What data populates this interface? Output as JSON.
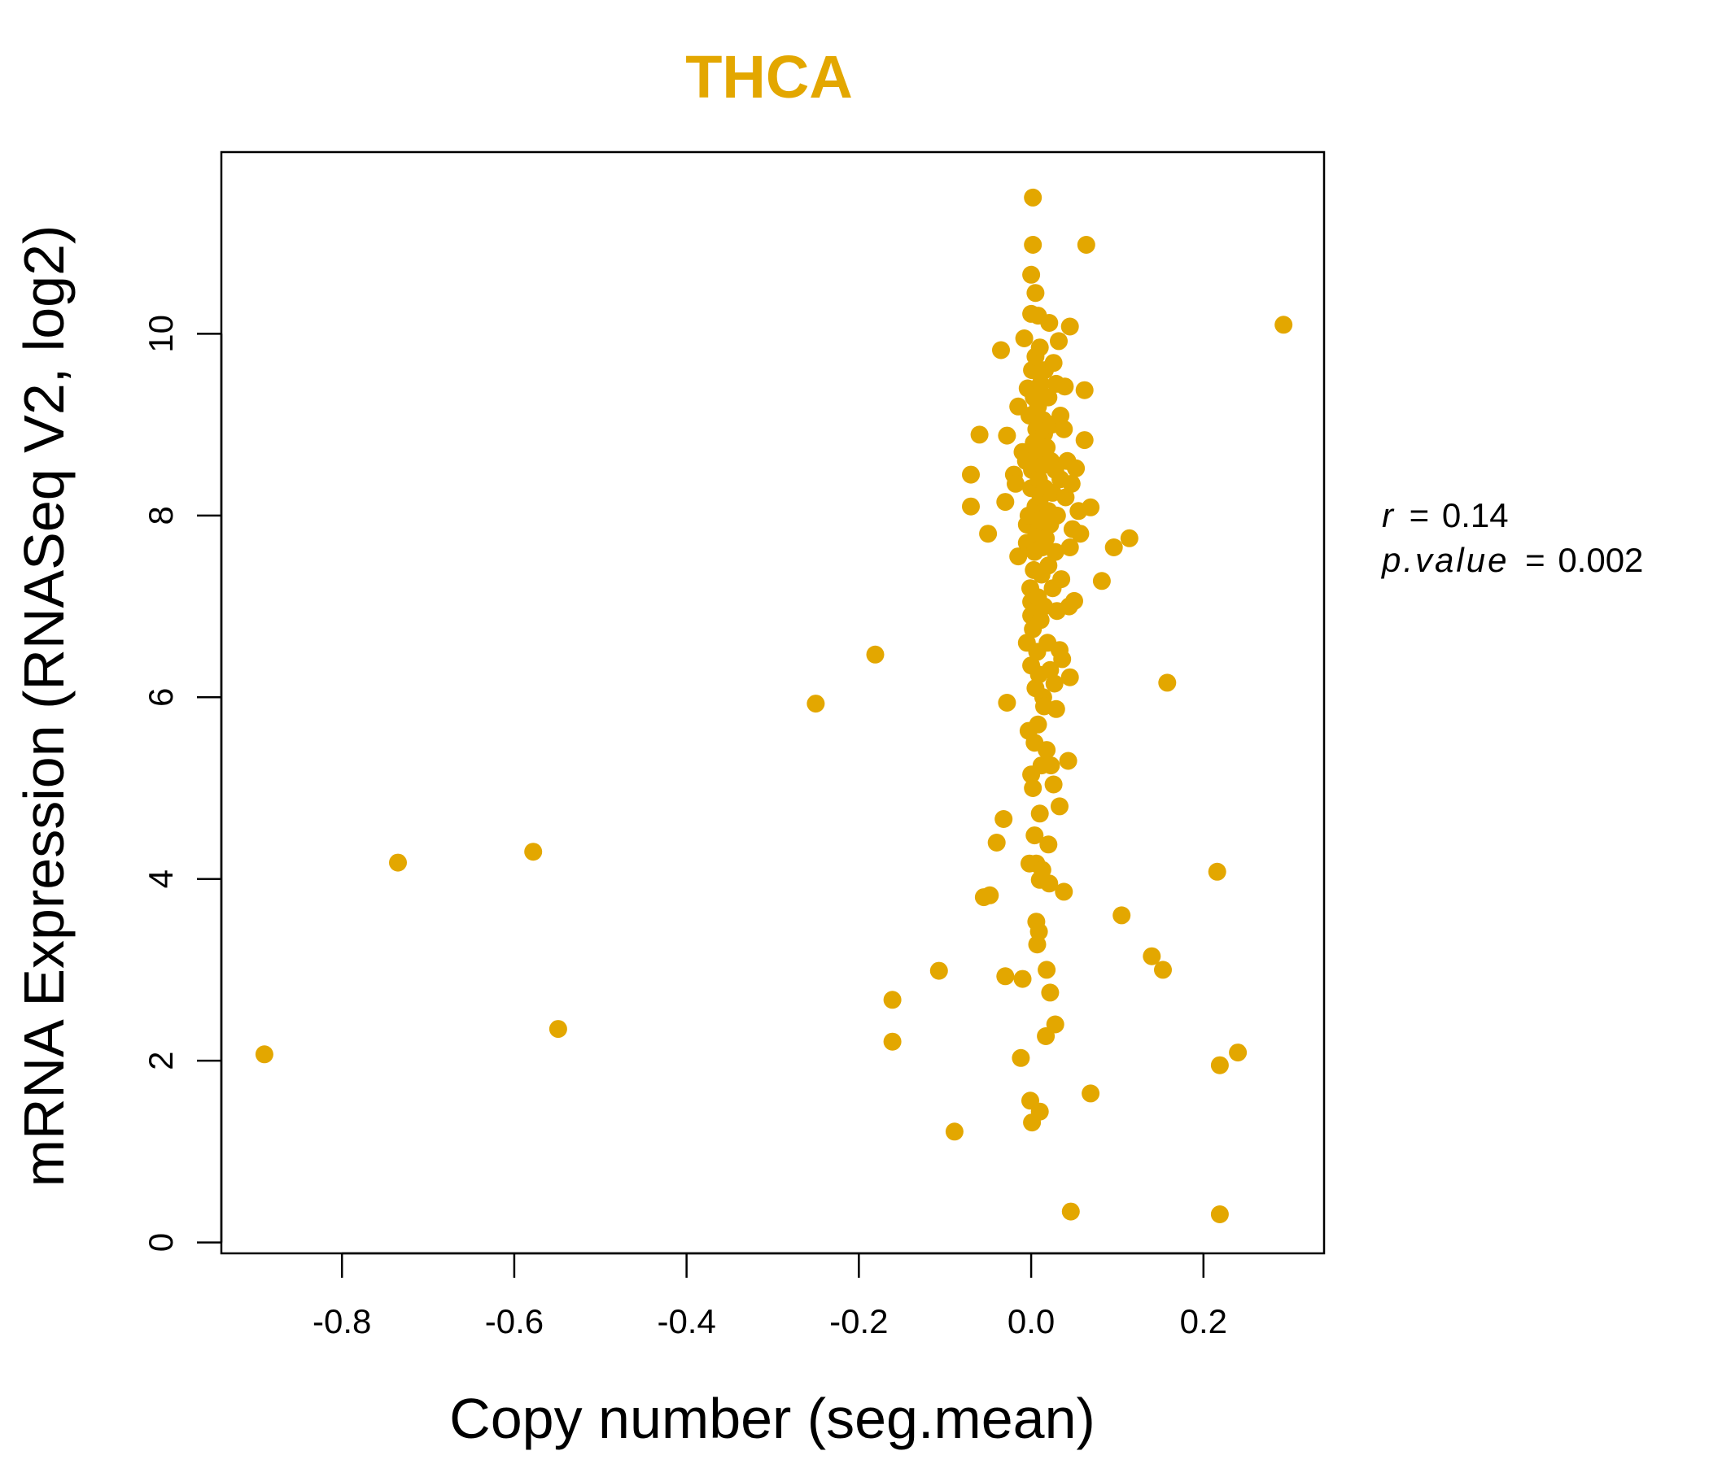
{
  "chart_data": {
    "type": "scatter",
    "title": "THCA",
    "xlabel": "Copy number (seg.mean)",
    "ylabel": "mRNA Expression (RNASeq V2, log2)",
    "xlim": [
      -0.94,
      0.34
    ],
    "ylim": [
      -0.12,
      12.0
    ],
    "x_ticks": [
      -0.8,
      -0.6,
      -0.4,
      -0.2,
      0.0,
      0.2
    ],
    "x_tick_labels": [
      "-0.8",
      "-0.6",
      "-0.4",
      "-0.2",
      "0.0",
      "0.2"
    ],
    "y_ticks": [
      0,
      2,
      4,
      6,
      8,
      10
    ],
    "y_tick_labels": [
      "0",
      "2",
      "4",
      "6",
      "8",
      "10"
    ],
    "grid": false,
    "point_color": "#E3A700",
    "stats": {
      "r_label": "r",
      "r_value": "0.14",
      "p_label": "p.value",
      "p_value": "0.002",
      "equals": "="
    },
    "points": [
      [
        -0.89,
        2.07
      ],
      [
        -0.735,
        4.18
      ],
      [
        -0.578,
        4.3
      ],
      [
        -0.549,
        2.35
      ],
      [
        -0.25,
        5.93
      ],
      [
        -0.181,
        6.47
      ],
      [
        -0.161,
        2.67
      ],
      [
        -0.161,
        2.21
      ],
      [
        -0.107,
        2.99
      ],
      [
        -0.089,
        1.22
      ],
      [
        -0.07,
        8.1
      ],
      [
        -0.07,
        8.45
      ],
      [
        -0.06,
        8.89
      ],
      [
        -0.055,
        3.8
      ],
      [
        -0.048,
        3.82
      ],
      [
        -0.05,
        7.8
      ],
      [
        -0.04,
        4.4
      ],
      [
        -0.035,
        9.82
      ],
      [
        -0.032,
        4.66
      ],
      [
        -0.03,
        8.15
      ],
      [
        -0.03,
        2.93
      ],
      [
        -0.028,
        5.94
      ],
      [
        -0.028,
        8.88
      ],
      [
        -0.02,
        8.45
      ],
      [
        -0.018,
        8.35
      ],
      [
        -0.015,
        7.55
      ],
      [
        -0.015,
        9.2
      ],
      [
        -0.012,
        2.03
      ],
      [
        -0.01,
        2.9
      ],
      [
        -0.01,
        8.7
      ],
      [
        -0.008,
        9.95
      ],
      [
        -0.006,
        8.6
      ],
      [
        -0.005,
        7.9
      ],
      [
        -0.005,
        7.7
      ],
      [
        -0.005,
        6.6
      ],
      [
        -0.004,
        9.4
      ],
      [
        -0.003,
        8.0
      ],
      [
        -0.003,
        5.63
      ],
      [
        -0.002,
        9.1
      ],
      [
        -0.002,
        4.17
      ],
      [
        -0.001,
        1.56
      ],
      [
        -0.001,
        7.2
      ],
      [
        0.0,
        8.3
      ],
      [
        0.0,
        6.9
      ],
      [
        0.0,
        6.35
      ],
      [
        0.0,
        5.15
      ],
      [
        0.0,
        10.22
      ],
      [
        0.0,
        10.65
      ],
      [
        0.0,
        7.05
      ],
      [
        0.001,
        1.32
      ],
      [
        0.001,
        9.6
      ],
      [
        0.001,
        8.5
      ],
      [
        0.002,
        11.5
      ],
      [
        0.002,
        10.98
      ],
      [
        0.002,
        6.75
      ],
      [
        0.002,
        5.0
      ],
      [
        0.003,
        8.8
      ],
      [
        0.003,
        7.4
      ],
      [
        0.003,
        9.3
      ],
      [
        0.004,
        4.48
      ],
      [
        0.004,
        5.5
      ],
      [
        0.004,
        7.6
      ],
      [
        0.005,
        8.1
      ],
      [
        0.005,
        10.45
      ],
      [
        0.005,
        6.1
      ],
      [
        0.005,
        9.75
      ],
      [
        0.006,
        3.53
      ],
      [
        0.006,
        8.95
      ],
      [
        0.006,
        7.8
      ],
      [
        0.006,
        4.17
      ],
      [
        0.007,
        6.5
      ],
      [
        0.007,
        8.65
      ],
      [
        0.007,
        3.28
      ],
      [
        0.008,
        9.2
      ],
      [
        0.008,
        7.1
      ],
      [
        0.008,
        10.2
      ],
      [
        0.008,
        5.7
      ],
      [
        0.009,
        3.42
      ],
      [
        0.009,
        8.4
      ],
      [
        0.009,
        6.25
      ],
      [
        0.01,
        4.72
      ],
      [
        0.01,
        7.95
      ],
      [
        0.01,
        9.85
      ],
      [
        0.01,
        1.44
      ],
      [
        0.01,
        3.99
      ],
      [
        0.011,
        8.2
      ],
      [
        0.011,
        6.85
      ],
      [
        0.011,
        9.45
      ],
      [
        0.012,
        7.35
      ],
      [
        0.012,
        5.25
      ],
      [
        0.013,
        8.55
      ],
      [
        0.013,
        4.1
      ],
      [
        0.013,
        7.65
      ],
      [
        0.014,
        9.05
      ],
      [
        0.014,
        6.0
      ],
      [
        0.015,
        8.9
      ],
      [
        0.015,
        7.0
      ],
      [
        0.015,
        5.9
      ],
      [
        0.016,
        8.3
      ],
      [
        0.016,
        9.6
      ],
      [
        0.017,
        2.27
      ],
      [
        0.017,
        7.75
      ],
      [
        0.018,
        5.42
      ],
      [
        0.018,
        3.0
      ],
      [
        0.018,
        8.75
      ],
      [
        0.019,
        6.6
      ],
      [
        0.02,
        4.38
      ],
      [
        0.02,
        7.45
      ],
      [
        0.02,
        9.3
      ],
      [
        0.02,
        8.05
      ],
      [
        0.021,
        10.12
      ],
      [
        0.021,
        3.95
      ],
      [
        0.022,
        7.9
      ],
      [
        0.022,
        6.3
      ],
      [
        0.022,
        2.75
      ],
      [
        0.023,
        8.6
      ],
      [
        0.023,
        5.25
      ],
      [
        0.024,
        9.0
      ],
      [
        0.025,
        7.2
      ],
      [
        0.025,
        8.25
      ],
      [
        0.026,
        9.68
      ],
      [
        0.026,
        5.04
      ],
      [
        0.027,
        6.15
      ],
      [
        0.028,
        8.5
      ],
      [
        0.028,
        2.4
      ],
      [
        0.028,
        7.6
      ],
      [
        0.029,
        9.45
      ],
      [
        0.029,
        5.87
      ],
      [
        0.03,
        8.0
      ],
      [
        0.03,
        6.95
      ],
      [
        0.032,
        9.92
      ],
      [
        0.033,
        4.8
      ],
      [
        0.033,
        6.52
      ],
      [
        0.034,
        8.4
      ],
      [
        0.034,
        9.1
      ],
      [
        0.035,
        7.3
      ],
      [
        0.036,
        6.42
      ],
      [
        0.038,
        3.86
      ],
      [
        0.038,
        8.95
      ],
      [
        0.039,
        9.42
      ],
      [
        0.04,
        8.2
      ],
      [
        0.042,
        8.6
      ],
      [
        0.043,
        5.3
      ],
      [
        0.044,
        7.0
      ],
      [
        0.045,
        10.08
      ],
      [
        0.045,
        6.22
      ],
      [
        0.045,
        7.65
      ],
      [
        0.046,
        0.34
      ],
      [
        0.047,
        8.35
      ],
      [
        0.048,
        7.85
      ],
      [
        0.05,
        7.06
      ],
      [
        0.052,
        8.52
      ],
      [
        0.055,
        8.05
      ],
      [
        0.057,
        7.8
      ],
      [
        0.062,
        8.83
      ],
      [
        0.062,
        9.38
      ],
      [
        0.064,
        10.98
      ],
      [
        0.069,
        1.64
      ],
      [
        0.069,
        8.09
      ],
      [
        0.082,
        7.28
      ],
      [
        0.096,
        7.65
      ],
      [
        0.105,
        3.6
      ],
      [
        0.114,
        7.75
      ],
      [
        0.14,
        3.15
      ],
      [
        0.153,
        3.0
      ],
      [
        0.158,
        6.16
      ],
      [
        0.216,
        4.08
      ],
      [
        0.219,
        0.31
      ],
      [
        0.219,
        1.95
      ],
      [
        0.24,
        2.09
      ],
      [
        0.293,
        10.1
      ]
    ]
  }
}
